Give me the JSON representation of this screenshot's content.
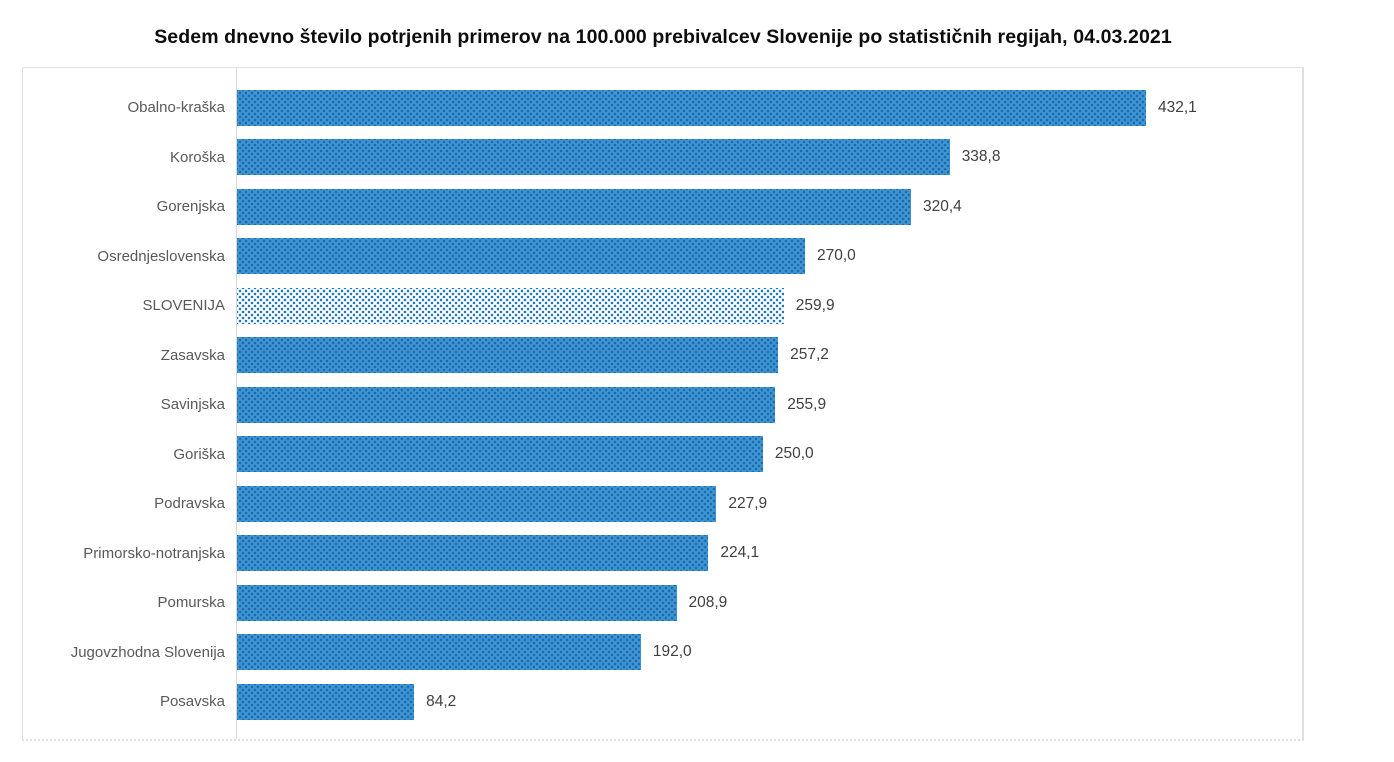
{
  "title": "Sedem dnevno število potrjenih primerov na 100.000 prebivalcev Slovenije po statističnih regijah, 04.03.2021",
  "chart_data": {
    "type": "bar",
    "orientation": "horizontal",
    "title": "Sedem dnevno število potrjenih primerov na 100.000 prebivalcev Slovenije po statističnih regijah, 04.03.2021",
    "categories": [
      "Obalno-kraška",
      "Koroška",
      "Gorenjska",
      "Osrednjeslovenska",
      "SLOVENIJA",
      "Zasavska",
      "Savinjska",
      "Goriška",
      "Podravska",
      "Primorsko-notranjska",
      "Pomurska",
      "Jugovzhodna Slovenija",
      "Posavska"
    ],
    "values": [
      432.1,
      338.8,
      320.4,
      270.0,
      259.9,
      257.2,
      255.9,
      250.0,
      227.9,
      224.1,
      208.9,
      192.0,
      84.2
    ],
    "value_labels": [
      "432,1",
      "338,8",
      "320,4",
      "270,0",
      "259,9",
      "257,2",
      "255,9",
      "250,0",
      "227,9",
      "224,1",
      "208,9",
      "192,0",
      "84,2"
    ],
    "highlight_category": "SLOVENIJA",
    "xlabel": "",
    "ylabel": "",
    "xlim": [
      0,
      508
    ],
    "grid": false,
    "legend": false,
    "pattern": "dotted-fill",
    "colors": {
      "bar_fill": "#3f94d1",
      "bar_pattern_dots": "#1a6cb0",
      "highlight_fill": "#ffffff",
      "highlight_pattern_dots": "#2077c0",
      "category_label": "#595959",
      "value_label": "#404040",
      "title_color": "#0d0d0d",
      "frame_border": "#e0e0e0",
      "axis_line": "#d9d9d9"
    }
  }
}
